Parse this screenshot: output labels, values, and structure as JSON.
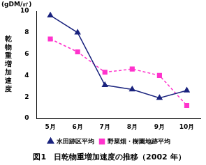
{
  "chart_data": {
    "type": "line",
    "title": "図1　日乾物重増加速度の推移（2002 年）",
    "y_label": "乾物重増加速度",
    "annotations": [
      "(gDM/㎡)"
    ],
    "categories": [
      "5月",
      "6月",
      "7月",
      "8月",
      "9月",
      "10月"
    ],
    "series": [
      {
        "name": "水田跡区平均",
        "color": "#1a237e",
        "marker": "triangle",
        "line_style": "solid",
        "values": [
          9.6,
          8.0,
          3.1,
          2.7,
          1.9,
          2.6
        ]
      },
      {
        "name": "野菜畑・樹園地跡平均",
        "color": "#ff33cc",
        "marker": "square",
        "line_style": "dashed",
        "values": [
          7.4,
          6.2,
          4.3,
          4.6,
          4.0,
          1.2
        ]
      }
    ],
    "ylim": [
      0,
      10
    ],
    "yticks": [
      0,
      2,
      4,
      6,
      8,
      10
    ],
    "grid": false,
    "legend": "bottom"
  }
}
